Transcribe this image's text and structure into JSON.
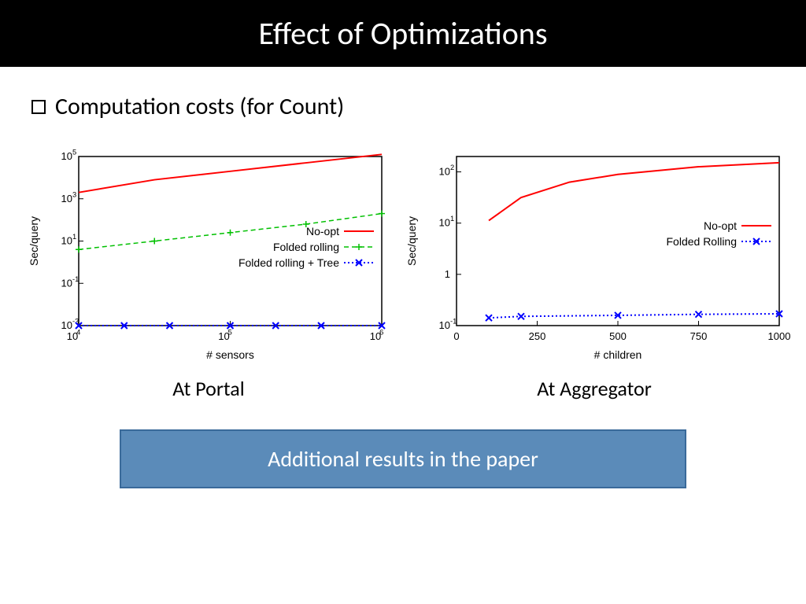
{
  "title": "Effect of Optimizations",
  "bullet": "Computation costs (for Count)",
  "footer": "Additional results in the paper",
  "chart1": {
    "type": "line-log-log",
    "caption": "At Portal",
    "xlabel": "# sensors",
    "ylabel": "Sec/query",
    "axis_color": "#000000",
    "label_fontsize": 14,
    "tick_fontsize": 13,
    "legend_fontsize": 14,
    "legend_position": "inside-lower-right",
    "x_log_ticks": [
      4,
      5,
      6
    ],
    "x_tick_labels": [
      "10^4",
      "10^5",
      "10^6"
    ],
    "y_log_ticks": [
      -3,
      -1,
      1,
      3,
      5
    ],
    "y_tick_labels": [
      "10^-3",
      "10^-1",
      "10^1",
      "10^3",
      "10^5"
    ],
    "xlim_log": [
      4,
      6
    ],
    "ylim_log": [
      -3,
      5
    ],
    "series": [
      {
        "name": "No-opt",
        "color": "#ff0000",
        "style": "solid",
        "width": 2,
        "marker": "none",
        "points": [
          {
            "x": 4.0,
            "y": 3.3
          },
          {
            "x": 4.5,
            "y": 3.9
          },
          {
            "x": 5.0,
            "y": 4.3
          },
          {
            "x": 5.5,
            "y": 4.7
          },
          {
            "x": 6.0,
            "y": 5.1
          }
        ]
      },
      {
        "name": "Folded rolling",
        "color": "#00c000",
        "style": "dashed",
        "width": 1.5,
        "marker": "plus",
        "points": [
          {
            "x": 4.0,
            "y": 0.6
          },
          {
            "x": 4.5,
            "y": 1.0
          },
          {
            "x": 5.0,
            "y": 1.4
          },
          {
            "x": 5.5,
            "y": 1.8
          },
          {
            "x": 6.0,
            "y": 2.3
          }
        ]
      },
      {
        "name": "Folded rolling + Tree",
        "color": "#0000ff",
        "style": "dotted",
        "width": 2,
        "marker": "x",
        "points": [
          {
            "x": 4.0,
            "y": -3.0
          },
          {
            "x": 4.3,
            "y": -3.0
          },
          {
            "x": 4.6,
            "y": -3.0
          },
          {
            "x": 5.0,
            "y": -3.0
          },
          {
            "x": 5.3,
            "y": -3.0
          },
          {
            "x": 5.6,
            "y": -3.0
          },
          {
            "x": 6.0,
            "y": -3.0
          }
        ]
      }
    ]
  },
  "chart2": {
    "type": "line-linear-log",
    "caption": "At Aggregator",
    "xlabel": "# children",
    "ylabel": "Sec/query",
    "axis_color": "#000000",
    "label_fontsize": 14,
    "tick_fontsize": 13,
    "legend_fontsize": 14,
    "legend_position": "inside-middle-right",
    "x_ticks": [
      0,
      250,
      500,
      750,
      1000
    ],
    "x_tick_labels": [
      "0",
      "250",
      "500",
      "750",
      "1000"
    ],
    "y_log_ticks": [
      -1,
      0,
      1,
      2
    ],
    "y_tick_labels": [
      "10^-1",
      "1",
      "10^1",
      "10^2"
    ],
    "xlim": [
      0,
      1000
    ],
    "ylim_log": [
      -1,
      2.3
    ],
    "series": [
      {
        "name": "No-opt",
        "color": "#ff0000",
        "style": "solid",
        "width": 2,
        "marker": "none",
        "points": [
          {
            "x": 100,
            "y": 1.05
          },
          {
            "x": 200,
            "y": 1.5
          },
          {
            "x": 350,
            "y": 1.8
          },
          {
            "x": 500,
            "y": 1.95
          },
          {
            "x": 750,
            "y": 2.1
          },
          {
            "x": 1000,
            "y": 2.18
          }
        ]
      },
      {
        "name": "Folded Rolling",
        "color": "#0000ff",
        "style": "dotted",
        "width": 2,
        "marker": "x",
        "points": [
          {
            "x": 100,
            "y": -0.85
          },
          {
            "x": 200,
            "y": -0.82
          },
          {
            "x": 500,
            "y": -0.8
          },
          {
            "x": 750,
            "y": -0.78
          },
          {
            "x": 1000,
            "y": -0.77
          }
        ]
      }
    ]
  }
}
